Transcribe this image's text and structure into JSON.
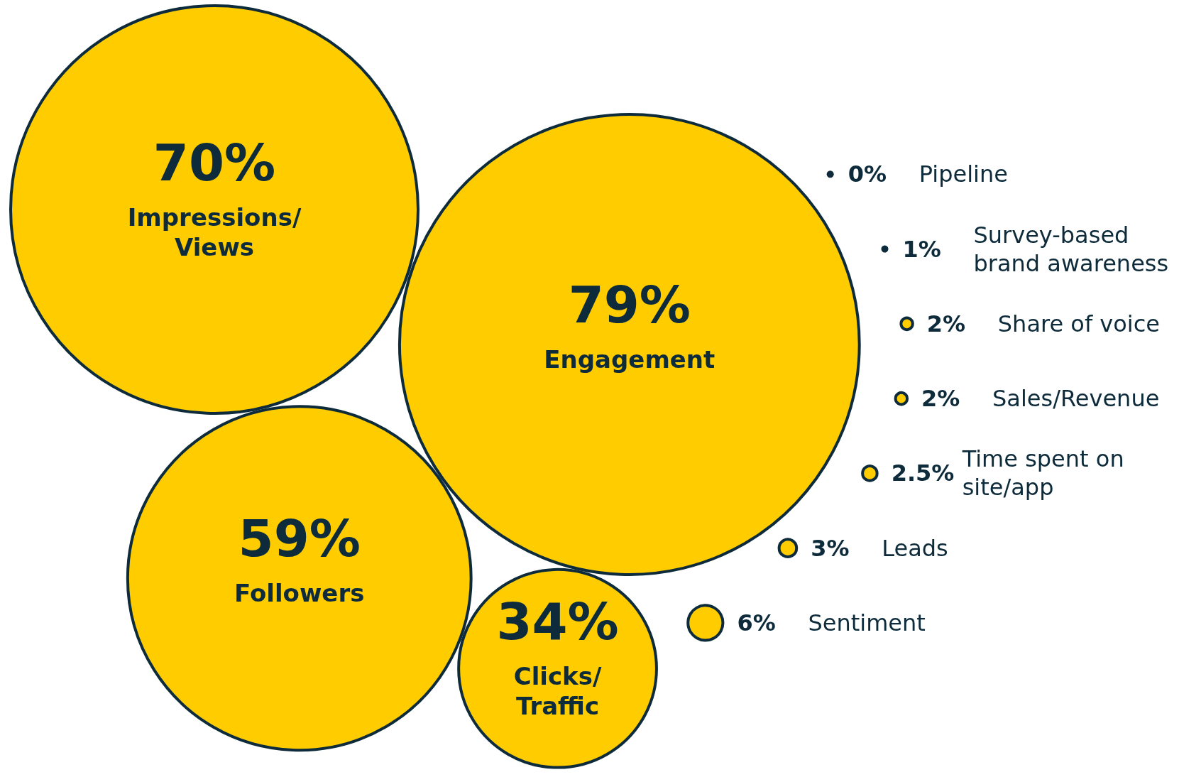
{
  "chart_data": {
    "type": "other",
    "categories": [
      "Impressions/ Views",
      "Engagement",
      "Followers",
      "Clicks/ Traffic",
      "Pipeline",
      "Survey-based brand awareness",
      "Share of voice",
      "Sales/Revenue",
      "Time spent on site/app",
      "Leads",
      "Sentiment"
    ],
    "values": [
      70,
      79,
      59,
      34,
      0,
      1,
      2,
      2,
      2.5,
      3,
      6
    ],
    "value_labels": [
      "70%",
      "79%",
      "59%",
      "34%",
      "0%",
      "1%",
      "2%",
      "2%",
      "2.5%",
      "3%",
      "6%"
    ],
    "colors": [
      "#ffcc00",
      "#ffcc00",
      "#ffcc00",
      "#ffcc00",
      "#0d2b3a",
      "#0d2b3a",
      "#ffcc00",
      "#ffcc00",
      "#ffcc00",
      "#ffcc00",
      "#ffcc00"
    ]
  }
}
